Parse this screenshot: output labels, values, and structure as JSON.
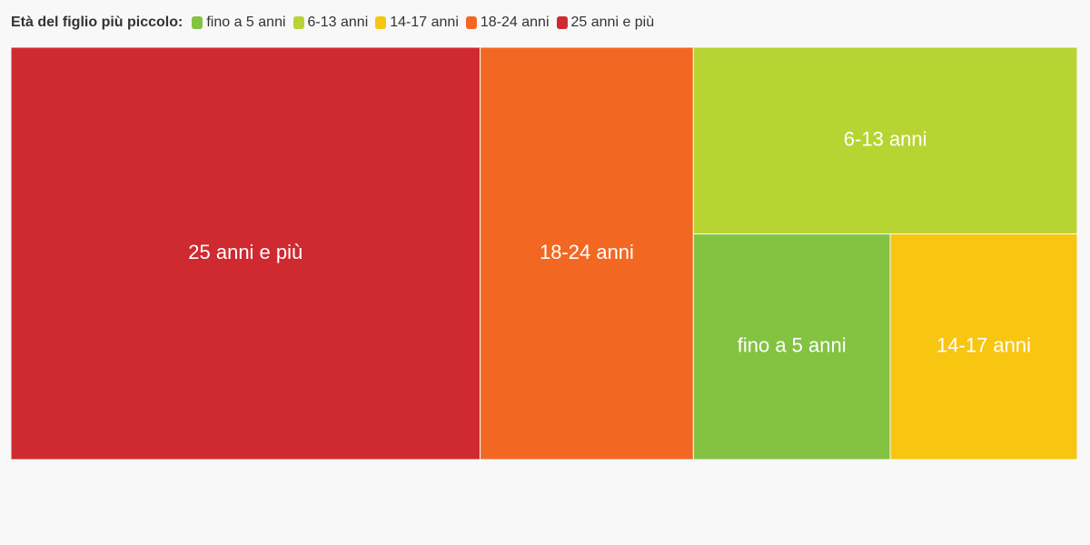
{
  "chart_data": {
    "type": "treemap",
    "legend_title": "Età del figlio più piccolo:",
    "series": [
      {
        "name": "fino a 5 anni",
        "color": "#84c241",
        "values": [
          10.1
        ]
      },
      {
        "name": "6-13 anni",
        "color": "#b8d433",
        "values": [
          16.3
        ]
      },
      {
        "name": "14-17 anni",
        "color": "#f8c511",
        "values": [
          9.6
        ]
      },
      {
        "name": "18-24 anni",
        "color": "#f26822",
        "values": [
          20
        ]
      },
      {
        "name": "25 anni e più",
        "color": "#cf2a30",
        "values": [
          44
        ]
      }
    ]
  }
}
